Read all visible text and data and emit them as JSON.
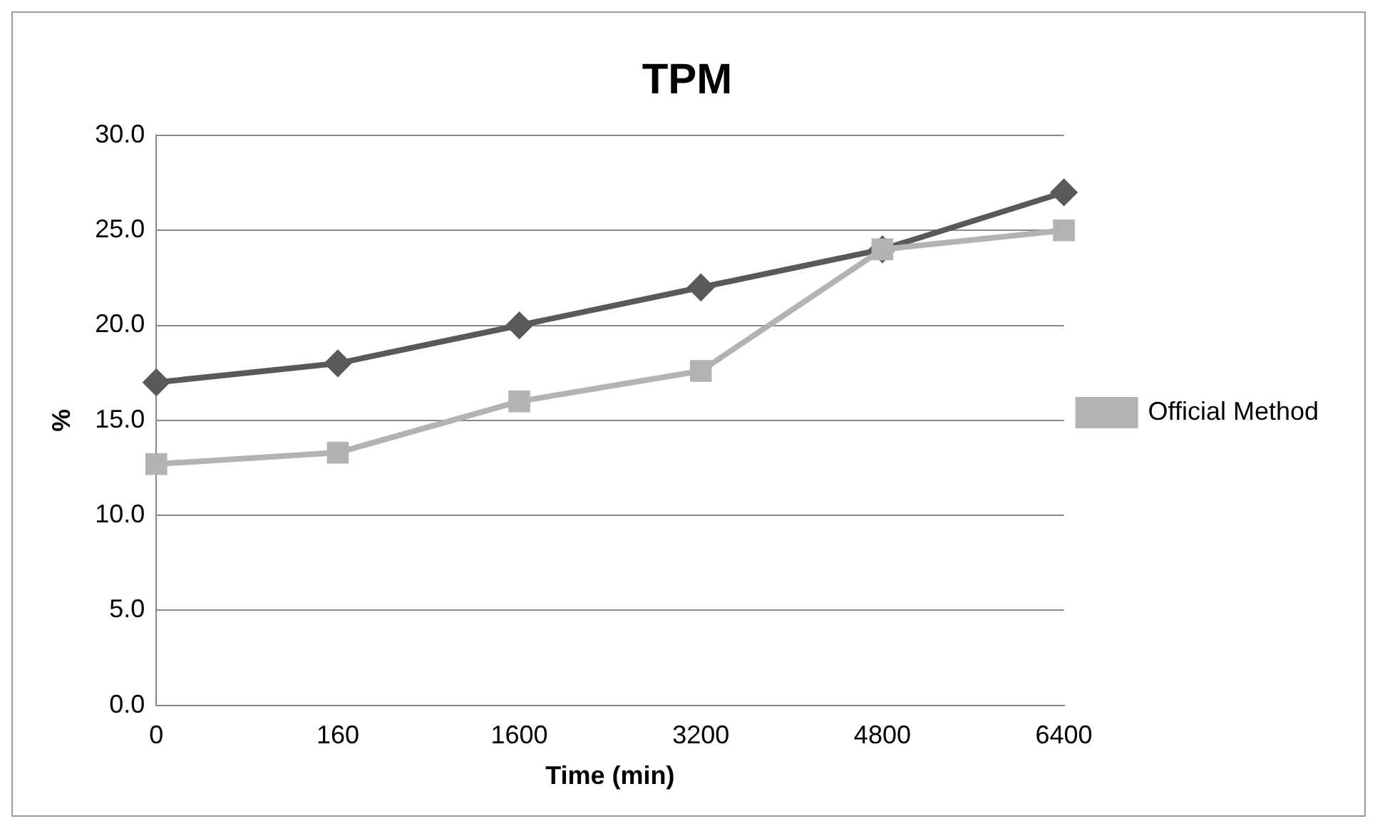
{
  "chart_data": {
    "type": "line",
    "title": "TPM",
    "xlabel": "Time (min)",
    "ylabel": "%",
    "categories": [
      "0",
      "160",
      "1600",
      "3200",
      "4800",
      "6400"
    ],
    "series": [
      {
        "color": "#595959",
        "marker": "diamond",
        "values": [
          17.0,
          18.0,
          20.0,
          22.0,
          24.0,
          27.0
        ]
      },
      {
        "name": "Official Method",
        "color": "#b3b3b3",
        "marker": "square",
        "values": [
          12.7,
          13.3,
          16.0,
          17.6,
          24.0,
          25.0
        ]
      }
    ],
    "ylim": [
      0,
      30
    ],
    "yticks": [
      {
        "value": 0,
        "label": "0.0"
      },
      {
        "value": 5,
        "label": "5.0"
      },
      {
        "value": 10,
        "label": "10.0"
      },
      {
        "value": 15,
        "label": "15.0"
      },
      {
        "value": 20,
        "label": "20.0"
      },
      {
        "value": 25,
        "label": "25.0"
      },
      {
        "value": 30,
        "label": "30.0"
      }
    ],
    "grid": "y",
    "legend": "right"
  }
}
